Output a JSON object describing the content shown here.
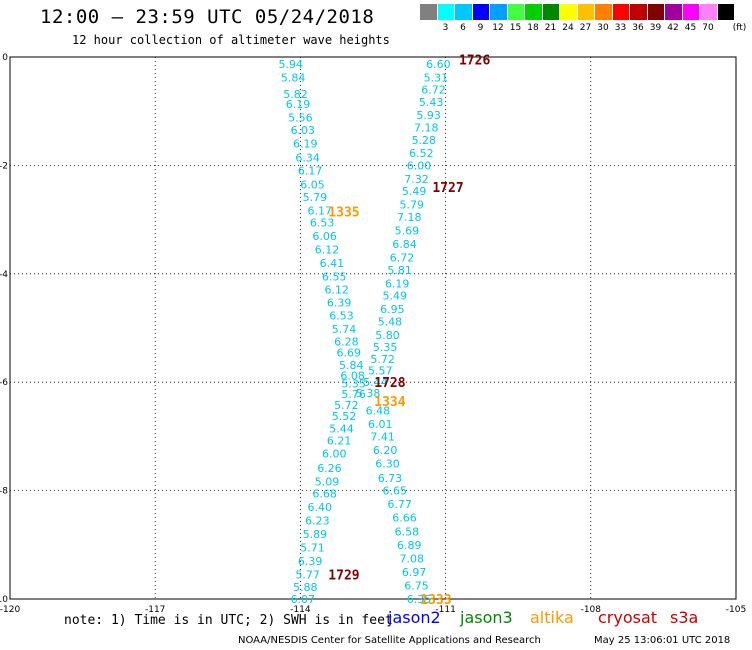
{
  "header": {
    "title": "12:00 – 23:59 UTC 05/24/2018",
    "subtitle": "12 hour collection of altimeter wave heights"
  },
  "colorbar": {
    "unit": "(ft)",
    "colors": [
      "#808080",
      "#00ffff",
      "#00c8ff",
      "#0000ff",
      "#00a0ff",
      "#40ff40",
      "#00d000",
      "#008800",
      "#ffff00",
      "#ffc000",
      "#ff8000",
      "#ff0000",
      "#c00000",
      "#800000",
      "#a000a0",
      "#ff00ff",
      "#ff80ff",
      "#000000"
    ],
    "labels": [
      "3",
      "6",
      "9",
      "12",
      "15",
      "18",
      "21",
      "24",
      "27",
      "30",
      "33",
      "36",
      "39",
      "42",
      "45",
      "70"
    ]
  },
  "chart_data": {
    "type": "scatter",
    "xlim": [
      -120,
      -105
    ],
    "ylim": [
      -10,
      0
    ],
    "x_ticks": [
      "-120",
      "-117",
      "-114",
      "-111",
      "-108",
      "-105"
    ],
    "y_ticks": [
      "0",
      "-2",
      "-4",
      "-6",
      "-8",
      "-10"
    ],
    "grid": true,
    "series": [
      {
        "name": "jason2",
        "color": "#00c8e6",
        "points": [
          [
            -114.2,
            -0.13,
            "5.94"
          ],
          [
            -114.15,
            -0.38,
            "5.84"
          ],
          [
            -114.1,
            -0.68,
            "5.82"
          ],
          [
            -114.05,
            -0.87,
            "6.19"
          ],
          [
            -114.0,
            -1.12,
            "5.56"
          ],
          [
            -113.95,
            -1.35,
            "6.03"
          ],
          [
            -113.9,
            -1.6,
            "6.19"
          ],
          [
            -113.85,
            -1.85,
            "6.34"
          ],
          [
            -113.8,
            -2.09,
            "6.17"
          ],
          [
            -113.75,
            -2.35,
            "6.05"
          ],
          [
            -113.7,
            -2.58,
            "5.79"
          ],
          [
            -113.6,
            -2.83,
            "6.17"
          ],
          [
            -113.55,
            -3.05,
            "6.53"
          ],
          [
            -113.5,
            -3.3,
            "6.06"
          ],
          [
            -113.45,
            -3.55,
            "6.12"
          ],
          [
            -113.35,
            -3.8,
            "6.41"
          ],
          [
            -113.3,
            -4.05,
            "6.55"
          ],
          [
            -113.25,
            -4.29,
            "6.12"
          ],
          [
            -113.2,
            -4.53,
            "6.39"
          ],
          [
            -113.15,
            -4.77,
            "6.53"
          ],
          [
            -113.1,
            -5.02,
            "5.74"
          ],
          [
            -113.05,
            -5.25,
            "6.28"
          ],
          [
            -113.0,
            -5.45,
            "6.69"
          ],
          [
            -112.95,
            -5.68,
            "5.84"
          ],
          [
            -112.92,
            -5.88,
            "6.08"
          ],
          [
            -112.9,
            -6.02,
            "5.35"
          ],
          [
            -112.9,
            -6.22,
            "5.76"
          ],
          [
            -113.05,
            -6.42,
            "5.72"
          ],
          [
            -113.1,
            -6.62,
            "5.52"
          ],
          [
            -113.15,
            -6.85,
            "5.44"
          ],
          [
            -113.2,
            -7.08,
            "6.21"
          ],
          [
            -113.3,
            -7.32,
            "6.00"
          ],
          [
            -113.4,
            -7.58,
            "6.26"
          ],
          [
            -113.45,
            -7.83,
            "5.09"
          ],
          [
            -113.5,
            -8.05,
            "6.68"
          ],
          [
            -113.6,
            -8.3,
            "6.40"
          ],
          [
            -113.65,
            -8.55,
            "6.23"
          ],
          [
            -113.7,
            -8.8,
            "5.89"
          ],
          [
            -113.75,
            -9.05,
            "5.71"
          ],
          [
            -113.8,
            -9.3,
            "6.39"
          ],
          [
            -113.85,
            -9.55,
            "5.77"
          ],
          [
            -113.9,
            -9.78,
            "5.88"
          ],
          [
            -113.95,
            -10.0,
            "6.07"
          ]
        ]
      },
      {
        "name": "jason2",
        "color": "#00c8e6",
        "points": [
          [
            -111.15,
            -0.13,
            "6.60"
          ],
          [
            -111.2,
            -0.38,
            "5.31"
          ],
          [
            -111.25,
            -0.6,
            "6.72"
          ],
          [
            -111.3,
            -0.83,
            "5.43"
          ],
          [
            -111.35,
            -1.07,
            "5.93"
          ],
          [
            -111.4,
            -1.3,
            "7.18"
          ],
          [
            -111.45,
            -1.53,
            "5.28"
          ],
          [
            -111.5,
            -1.77,
            "6.52"
          ],
          [
            -111.55,
            -2.0,
            "6.00"
          ],
          [
            -111.6,
            -2.25,
            "7.32"
          ],
          [
            -111.65,
            -2.47,
            "5.49"
          ],
          [
            -111.7,
            -2.72,
            "5.79"
          ],
          [
            -111.75,
            -2.95,
            "7.18"
          ],
          [
            -111.8,
            -3.2,
            "5.69"
          ],
          [
            -111.85,
            -3.45,
            "6.84"
          ],
          [
            -111.9,
            -3.7,
            "6.72"
          ],
          [
            -111.95,
            -3.93,
            "5.81"
          ],
          [
            -112.0,
            -4.18,
            "6.19"
          ],
          [
            -112.05,
            -4.4,
            "5.49"
          ],
          [
            -112.1,
            -4.65,
            "6.95"
          ],
          [
            -112.15,
            -4.88,
            "5.48"
          ],
          [
            -112.2,
            -5.13,
            "5.80"
          ],
          [
            -112.25,
            -5.35,
            "5.35"
          ],
          [
            -112.3,
            -5.57,
            "5.72"
          ],
          [
            -112.35,
            -5.78,
            "5.57"
          ],
          [
            -112.45,
            -6.0,
            "5.44"
          ],
          [
            -112.6,
            -6.2,
            "5.38"
          ],
          [
            -112.4,
            -6.52,
            "6.48"
          ],
          [
            -112.35,
            -6.77,
            "6.01"
          ],
          [
            -112.3,
            -7.0,
            "7.41"
          ],
          [
            -112.25,
            -7.25,
            "6.20"
          ],
          [
            -112.2,
            -7.5,
            "6.30"
          ],
          [
            -112.15,
            -7.77,
            "6.73"
          ],
          [
            -112.05,
            -8.0,
            "6.65"
          ],
          [
            -111.95,
            -8.25,
            "6.77"
          ],
          [
            -111.85,
            -8.5,
            "6.66"
          ],
          [
            -111.8,
            -8.75,
            "6.58"
          ],
          [
            -111.75,
            -9.0,
            "6.89"
          ],
          [
            -111.7,
            -9.25,
            "7.08"
          ],
          [
            -111.65,
            -9.5,
            "6.97"
          ],
          [
            -111.6,
            -9.75,
            "6.75"
          ],
          [
            -111.55,
            -10.0,
            "6.35"
          ]
        ]
      }
    ],
    "time_labels": [
      {
        "x": -110.4,
        "y": -0.05,
        "text": "1726",
        "color": "#800000"
      },
      {
        "x": -110.95,
        "y": -2.4,
        "text": "1727",
        "color": "#800000"
      },
      {
        "x": -112.15,
        "y": -6.0,
        "text": "1728",
        "color": "#800000"
      },
      {
        "x": -113.1,
        "y": -9.55,
        "text": "1729",
        "color": "#800000"
      },
      {
        "x": -113.1,
        "y": -2.85,
        "text": "1335",
        "color": "#ff9900"
      },
      {
        "x": -112.15,
        "y": -6.35,
        "text": "1334",
        "color": "#ff9900"
      },
      {
        "x": -111.2,
        "y": -10.0,
        "text": "1333",
        "color": "#ff9900"
      }
    ]
  },
  "footer": {
    "note": "note: 1) Time is in UTC; 2) SWH is in feet",
    "satellites": [
      {
        "name": "jason2",
        "color": "#0000ff"
      },
      {
        "name": "jason3",
        "color": "#008800"
      },
      {
        "name": "altika",
        "color": "#ff9900"
      },
      {
        "name": "cryosat",
        "color": "#cc0000"
      },
      {
        "name": "s3a",
        "color": "#cc0000"
      }
    ],
    "credit": "NOAA/NESDIS Center for Satellite Applications and Research",
    "timestamp": "May 25 13:06:01 UTC 2018"
  }
}
